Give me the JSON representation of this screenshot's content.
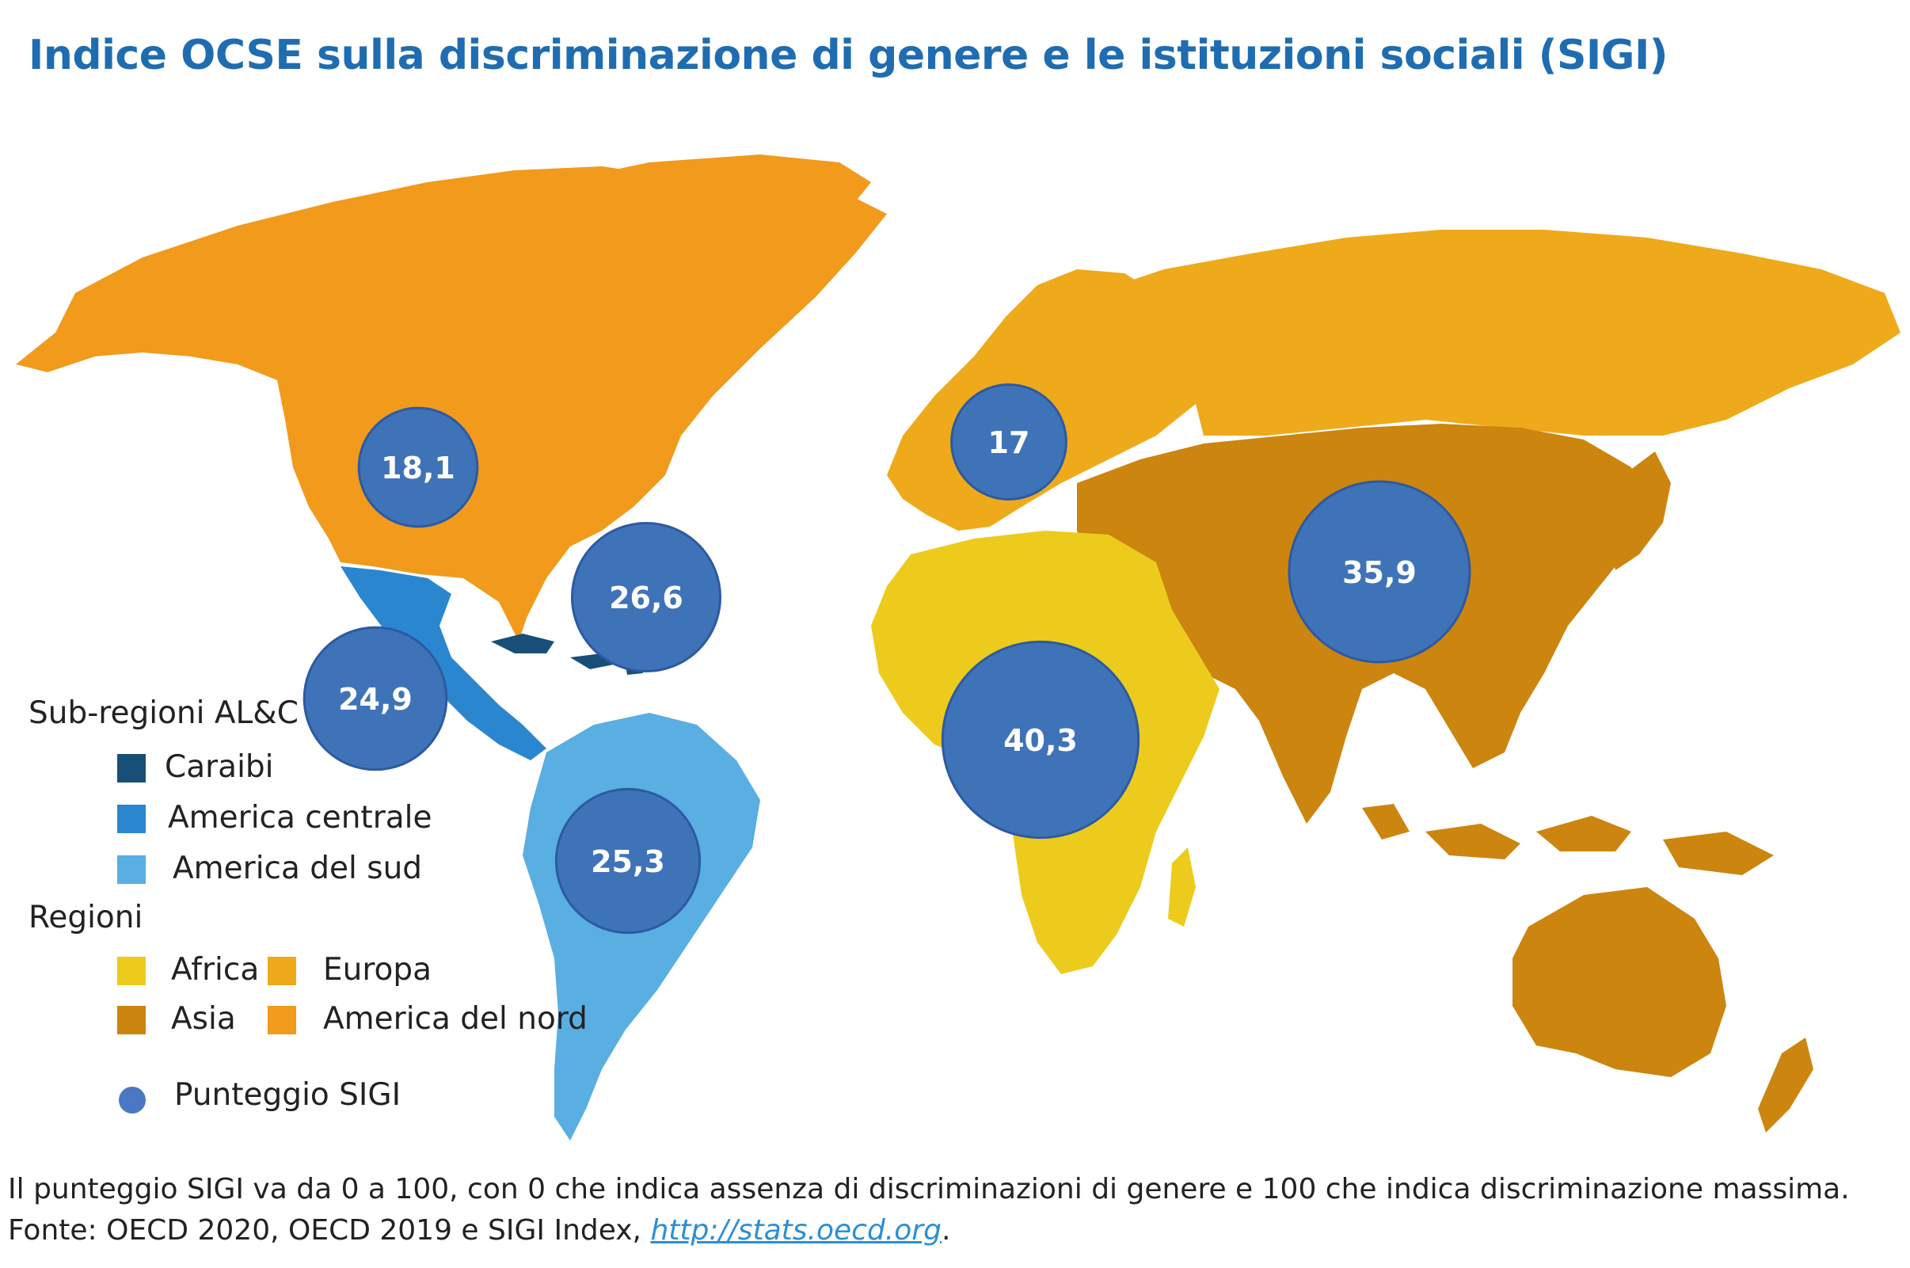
{
  "title": "Indice OCSE sulla discriminazione di genere e le istituzioni sociali (SIGI)",
  "colors": {
    "caraibi": "#174f78",
    "america_centrale": "#2a87cf",
    "america_sud": "#59aee2",
    "africa": "#eccb1d",
    "asia": "#cc850e",
    "europa": "#eeaa1a",
    "america_nord": "#f19a1c",
    "bubble": "#3f73b8",
    "bubble_border": "#2c5aa3",
    "title": "#1f6db0"
  },
  "scores": [
    {
      "id": "america-del-nord",
      "label": "18,1",
      "value": 18.1
    },
    {
      "id": "europa",
      "label": "17",
      "value": 17
    },
    {
      "id": "caraibi",
      "label": "26,6",
      "value": 26.6
    },
    {
      "id": "america-centrale",
      "label": "24,9",
      "value": 24.9
    },
    {
      "id": "america-del-sud",
      "label": "25,3",
      "value": 25.3
    },
    {
      "id": "africa",
      "label": "40,3",
      "value": 40.3
    },
    {
      "id": "asia",
      "label": "35,9",
      "value": 35.9
    }
  ],
  "legend": {
    "subregions_heading": "Sub-regioni AL&C",
    "subregions": [
      "Caraibi",
      "America centrale",
      "America del sud"
    ],
    "regions_heading": "Regioni",
    "regions": [
      "Africa",
      "Europa",
      "Asia",
      "America del nord"
    ],
    "score_label": "Punteggio SIGI"
  },
  "notes": {
    "line1": "Il punteggio SIGI va da 0 a 100, con 0 che indica assenza di discriminazioni di genere e 100 che indica discriminazione massima.",
    "source_prefix": "Fonte: OECD 2020, OECD 2019 e SIGI Index, ",
    "source_link": "http://stats.oecd.org",
    "source_suffix": "."
  }
}
